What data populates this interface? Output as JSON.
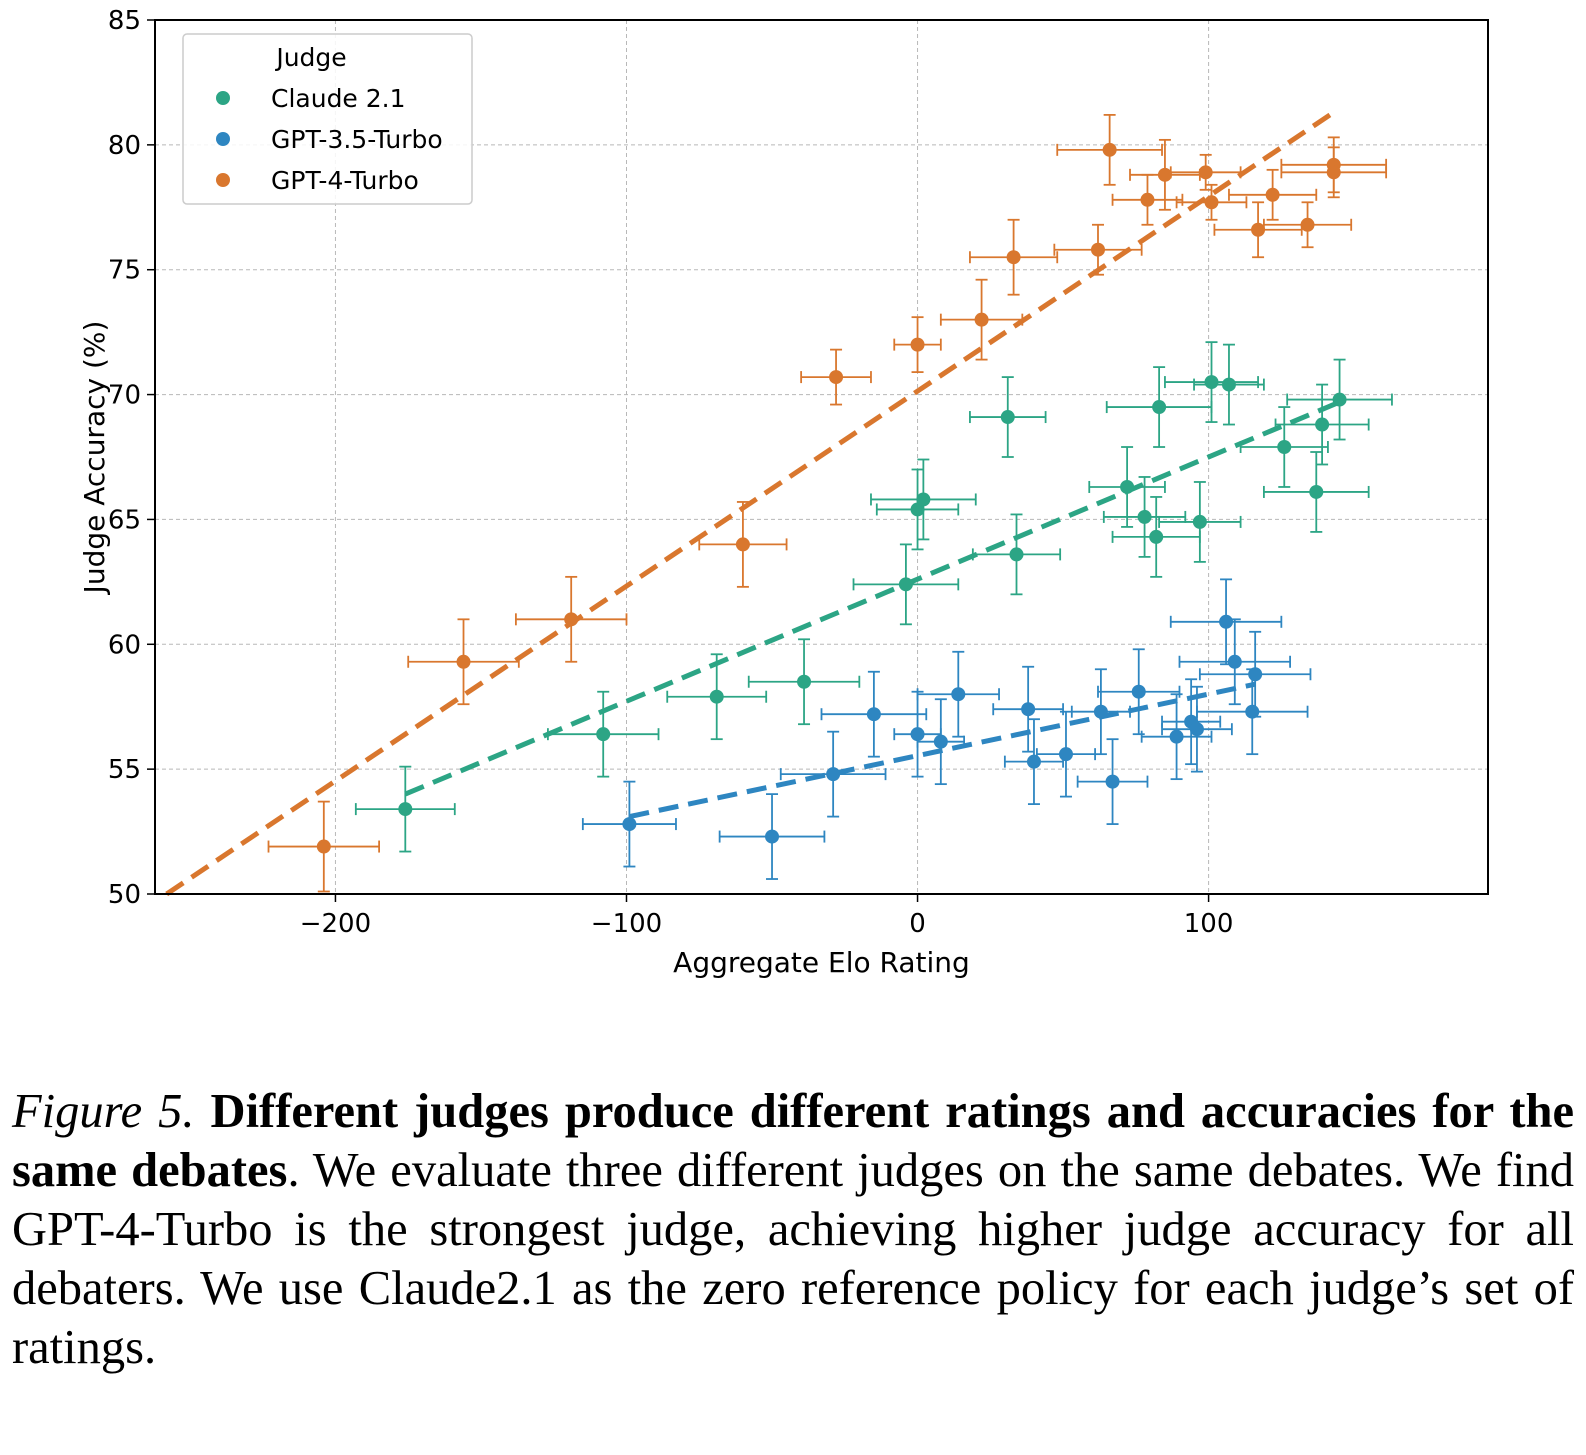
{
  "chart_data": {
    "type": "scatter",
    "title": "",
    "xlabel": "Aggregate Elo Rating",
    "ylabel": "Judge Accuracy (%)",
    "xlim": [
      -262,
      196
    ],
    "ylim": [
      50,
      85
    ],
    "xticks": [
      "−200",
      "−100",
      "0",
      "100"
    ],
    "xtick_values": [
      -200,
      -100,
      0,
      100
    ],
    "yticks": [
      "50",
      "55",
      "60",
      "65",
      "70",
      "75",
      "80",
      "85"
    ],
    "ytick_values": [
      50,
      55,
      60,
      65,
      70,
      75,
      80,
      85
    ],
    "grid": true,
    "legend": {
      "title": "Judge",
      "location": "upper-left"
    },
    "series": [
      {
        "name": "Claude 2.1",
        "color": "#2ca585",
        "points": [
          {
            "x": -176,
            "y": 53.4,
            "xerr": 17,
            "yerr": 1.7
          },
          {
            "x": -108,
            "y": 56.4,
            "xerr": 19,
            "yerr": 1.7
          },
          {
            "x": -69,
            "y": 57.9,
            "xerr": 17,
            "yerr": 1.7
          },
          {
            "x": -39,
            "y": 58.5,
            "xerr": 19,
            "yerr": 1.7
          },
          {
            "x": -4,
            "y": 62.4,
            "xerr": 18,
            "yerr": 1.6
          },
          {
            "x": 0,
            "y": 65.4,
            "xerr": 14,
            "yerr": 1.6
          },
          {
            "x": 2,
            "y": 65.8,
            "xerr": 18,
            "yerr": 1.6
          },
          {
            "x": 31,
            "y": 69.1,
            "xerr": 13,
            "yerr": 1.6
          },
          {
            "x": 34,
            "y": 63.6,
            "xerr": 15,
            "yerr": 1.6
          },
          {
            "x": 72,
            "y": 66.3,
            "xerr": 13,
            "yerr": 1.6
          },
          {
            "x": 78,
            "y": 65.1,
            "xerr": 14,
            "yerr": 1.6
          },
          {
            "x": 82,
            "y": 64.3,
            "xerr": 15,
            "yerr": 1.6
          },
          {
            "x": 83,
            "y": 69.5,
            "xerr": 18,
            "yerr": 1.6
          },
          {
            "x": 97,
            "y": 64.9,
            "xerr": 14,
            "yerr": 1.6
          },
          {
            "x": 101,
            "y": 70.5,
            "xerr": 16,
            "yerr": 1.6
          },
          {
            "x": 107,
            "y": 70.4,
            "xerr": 12,
            "yerr": 1.6
          },
          {
            "x": 126,
            "y": 67.9,
            "xerr": 15,
            "yerr": 1.6
          },
          {
            "x": 137,
            "y": 66.1,
            "xerr": 18,
            "yerr": 1.6
          },
          {
            "x": 139,
            "y": 68.8,
            "xerr": 16,
            "yerr": 1.6
          },
          {
            "x": 145,
            "y": 69.8,
            "xerr": 18,
            "yerr": 1.6
          }
        ],
        "fit": {
          "x": [
            -176,
            145
          ],
          "y": [
            54.0,
            69.7
          ]
        }
      },
      {
        "name": "GPT-3.5-Turbo",
        "color": "#2e86c1",
        "points": [
          {
            "x": -99,
            "y": 52.8,
            "xerr": 16,
            "yerr": 1.7
          },
          {
            "x": -50,
            "y": 52.3,
            "xerr": 18,
            "yerr": 1.7
          },
          {
            "x": -29,
            "y": 54.8,
            "xerr": 18,
            "yerr": 1.7
          },
          {
            "x": -15,
            "y": 57.2,
            "xerr": 18,
            "yerr": 1.7
          },
          {
            "x": 0,
            "y": 56.4,
            "xerr": 8,
            "yerr": 1.7
          },
          {
            "x": 8,
            "y": 56.1,
            "xerr": 8,
            "yerr": 1.7
          },
          {
            "x": 14,
            "y": 58.0,
            "xerr": 14,
            "yerr": 1.7
          },
          {
            "x": 38,
            "y": 57.4,
            "xerr": 12,
            "yerr": 1.7
          },
          {
            "x": 40,
            "y": 55.3,
            "xerr": 10,
            "yerr": 1.7
          },
          {
            "x": 51,
            "y": 55.6,
            "xerr": 10,
            "yerr": 1.7
          },
          {
            "x": 63,
            "y": 57.3,
            "xerr": 10,
            "yerr": 1.7
          },
          {
            "x": 67,
            "y": 54.5,
            "xerr": 12,
            "yerr": 1.7
          },
          {
            "x": 76,
            "y": 58.1,
            "xerr": 14,
            "yerr": 1.7
          },
          {
            "x": 89,
            "y": 56.3,
            "xerr": 12,
            "yerr": 1.7
          },
          {
            "x": 94,
            "y": 56.9,
            "xerr": 10,
            "yerr": 1.7
          },
          {
            "x": 96,
            "y": 56.6,
            "xerr": 12,
            "yerr": 1.7
          },
          {
            "x": 106,
            "y": 60.9,
            "xerr": 19,
            "yerr": 1.7
          },
          {
            "x": 109,
            "y": 59.3,
            "xerr": 19,
            "yerr": 1.7
          },
          {
            "x": 115,
            "y": 57.3,
            "xerr": 19,
            "yerr": 1.7
          },
          {
            "x": 116,
            "y": 58.8,
            "xerr": 19,
            "yerr": 1.7
          }
        ],
        "fit": {
          "x": [
            -99,
            116
          ],
          "y": [
            53.1,
            58.4
          ]
        }
      },
      {
        "name": "GPT-4-Turbo",
        "color": "#d9772e",
        "points": [
          {
            "x": -204,
            "y": 51.9,
            "xerr": 19,
            "yerr": 1.8
          },
          {
            "x": -156,
            "y": 59.3,
            "xerr": 19,
            "yerr": 1.7
          },
          {
            "x": -119,
            "y": 61.0,
            "xerr": 19,
            "yerr": 1.7
          },
          {
            "x": -60,
            "y": 64.0,
            "xerr": 15,
            "yerr": 1.7
          },
          {
            "x": -28,
            "y": 70.7,
            "xerr": 12,
            "yerr": 1.1
          },
          {
            "x": 0,
            "y": 72.0,
            "xerr": 8,
            "yerr": 1.1
          },
          {
            "x": 22,
            "y": 73.0,
            "xerr": 14,
            "yerr": 1.6
          },
          {
            "x": 33,
            "y": 75.5,
            "xerr": 15,
            "yerr": 1.5
          },
          {
            "x": 62,
            "y": 75.8,
            "xerr": 15,
            "yerr": 1.0
          },
          {
            "x": 66,
            "y": 79.8,
            "xerr": 18,
            "yerr": 1.4
          },
          {
            "x": 79,
            "y": 77.8,
            "xerr": 12,
            "yerr": 1.0
          },
          {
            "x": 85,
            "y": 78.8,
            "xerr": 12,
            "yerr": 1.4
          },
          {
            "x": 99,
            "y": 78.9,
            "xerr": 12,
            "yerr": 0.7
          },
          {
            "x": 101,
            "y": 77.7,
            "xerr": 12,
            "yerr": 0.7
          },
          {
            "x": 117,
            "y": 76.6,
            "xerr": 15,
            "yerr": 1.1
          },
          {
            "x": 122,
            "y": 78.0,
            "xerr": 15,
            "yerr": 1.0
          },
          {
            "x": 134,
            "y": 76.8,
            "xerr": 15,
            "yerr": 0.9
          },
          {
            "x": 143,
            "y": 79.2,
            "xerr": 18,
            "yerr": 1.1
          },
          {
            "x": 143,
            "y": 78.9,
            "xerr": 18,
            "yerr": 1.0
          }
        ],
        "fit": {
          "x": [
            -258,
            143
          ],
          "y": [
            50.0,
            81.3
          ]
        }
      }
    ]
  },
  "caption": {
    "label": "Figure 5.",
    "bold_text": "Different judges produce different ratings and accuracies for the same debates",
    "body_text": ". We evaluate three different judges on the same debates. We find GPT-4-Turbo is the strongest judge, achieving higher judge accuracy for all debaters. We use Claude2.1 as the zero reference policy for each judge’s set of ratings."
  }
}
